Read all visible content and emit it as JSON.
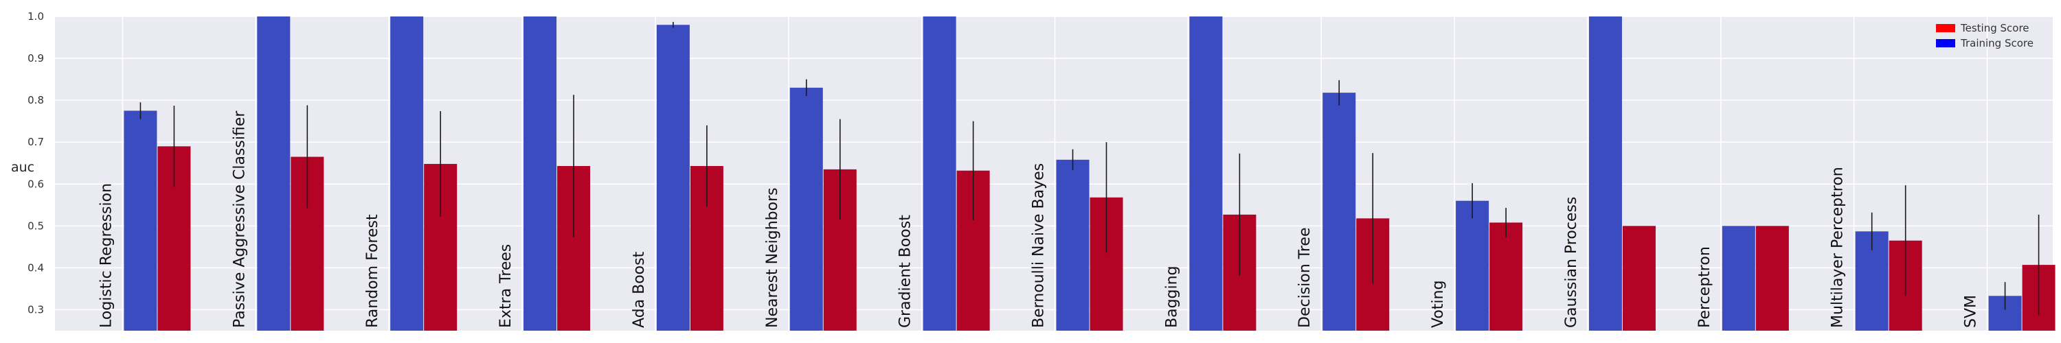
{
  "chart_data": {
    "type": "bar",
    "ylabel": "auc",
    "ylim": [
      0.25,
      1.0
    ],
    "yticks": [
      "0.3",
      "0.4",
      "0.5",
      "0.6",
      "0.7",
      "0.8",
      "0.9",
      "1.0"
    ],
    "grid": true,
    "legend_position": "top-right",
    "categories": [
      "Logistic Regression",
      "Passive Aggressive Classifier",
      "Random Forest",
      "Extra Trees",
      "Ada Boost",
      "Nearest Neighbors",
      "Gradient Boost",
      "Bernoulli Naive Bayes",
      "Bagging",
      "Decision Tree",
      "Voting",
      "Gaussian Process",
      "Perceptron",
      "Multilayer Perceptron",
      "SVM"
    ],
    "series": [
      {
        "name": "Training Score",
        "color": "#3b4cc0",
        "values": [
          0.775,
          1.0,
          1.0,
          1.0,
          0.98,
          0.83,
          1.0,
          0.658,
          1.0,
          0.818,
          0.56,
          1.0,
          0.5,
          0.487,
          0.333
        ],
        "errors": [
          0.02,
          0.0,
          0.0,
          0.0,
          0.007,
          0.02,
          0.0,
          0.025,
          0.0,
          0.03,
          0.042,
          0.0,
          0.0,
          0.045,
          0.033
        ]
      },
      {
        "name": "Testing Score",
        "color": "#b40426",
        "values": [
          0.69,
          0.665,
          0.648,
          0.643,
          0.643,
          0.635,
          0.632,
          0.568,
          0.527,
          0.518,
          0.508,
          0.5,
          0.5,
          0.465,
          0.407
        ],
        "errors": [
          0.097,
          0.123,
          0.126,
          0.17,
          0.097,
          0.12,
          0.118,
          0.132,
          0.146,
          0.156,
          0.035,
          0.0,
          0.0,
          0.132,
          0.12
        ]
      }
    ],
    "legend": [
      {
        "label": "Testing Score",
        "color": "#ff0000"
      },
      {
        "label": "Training Score",
        "color": "#0000ff"
      }
    ]
  }
}
